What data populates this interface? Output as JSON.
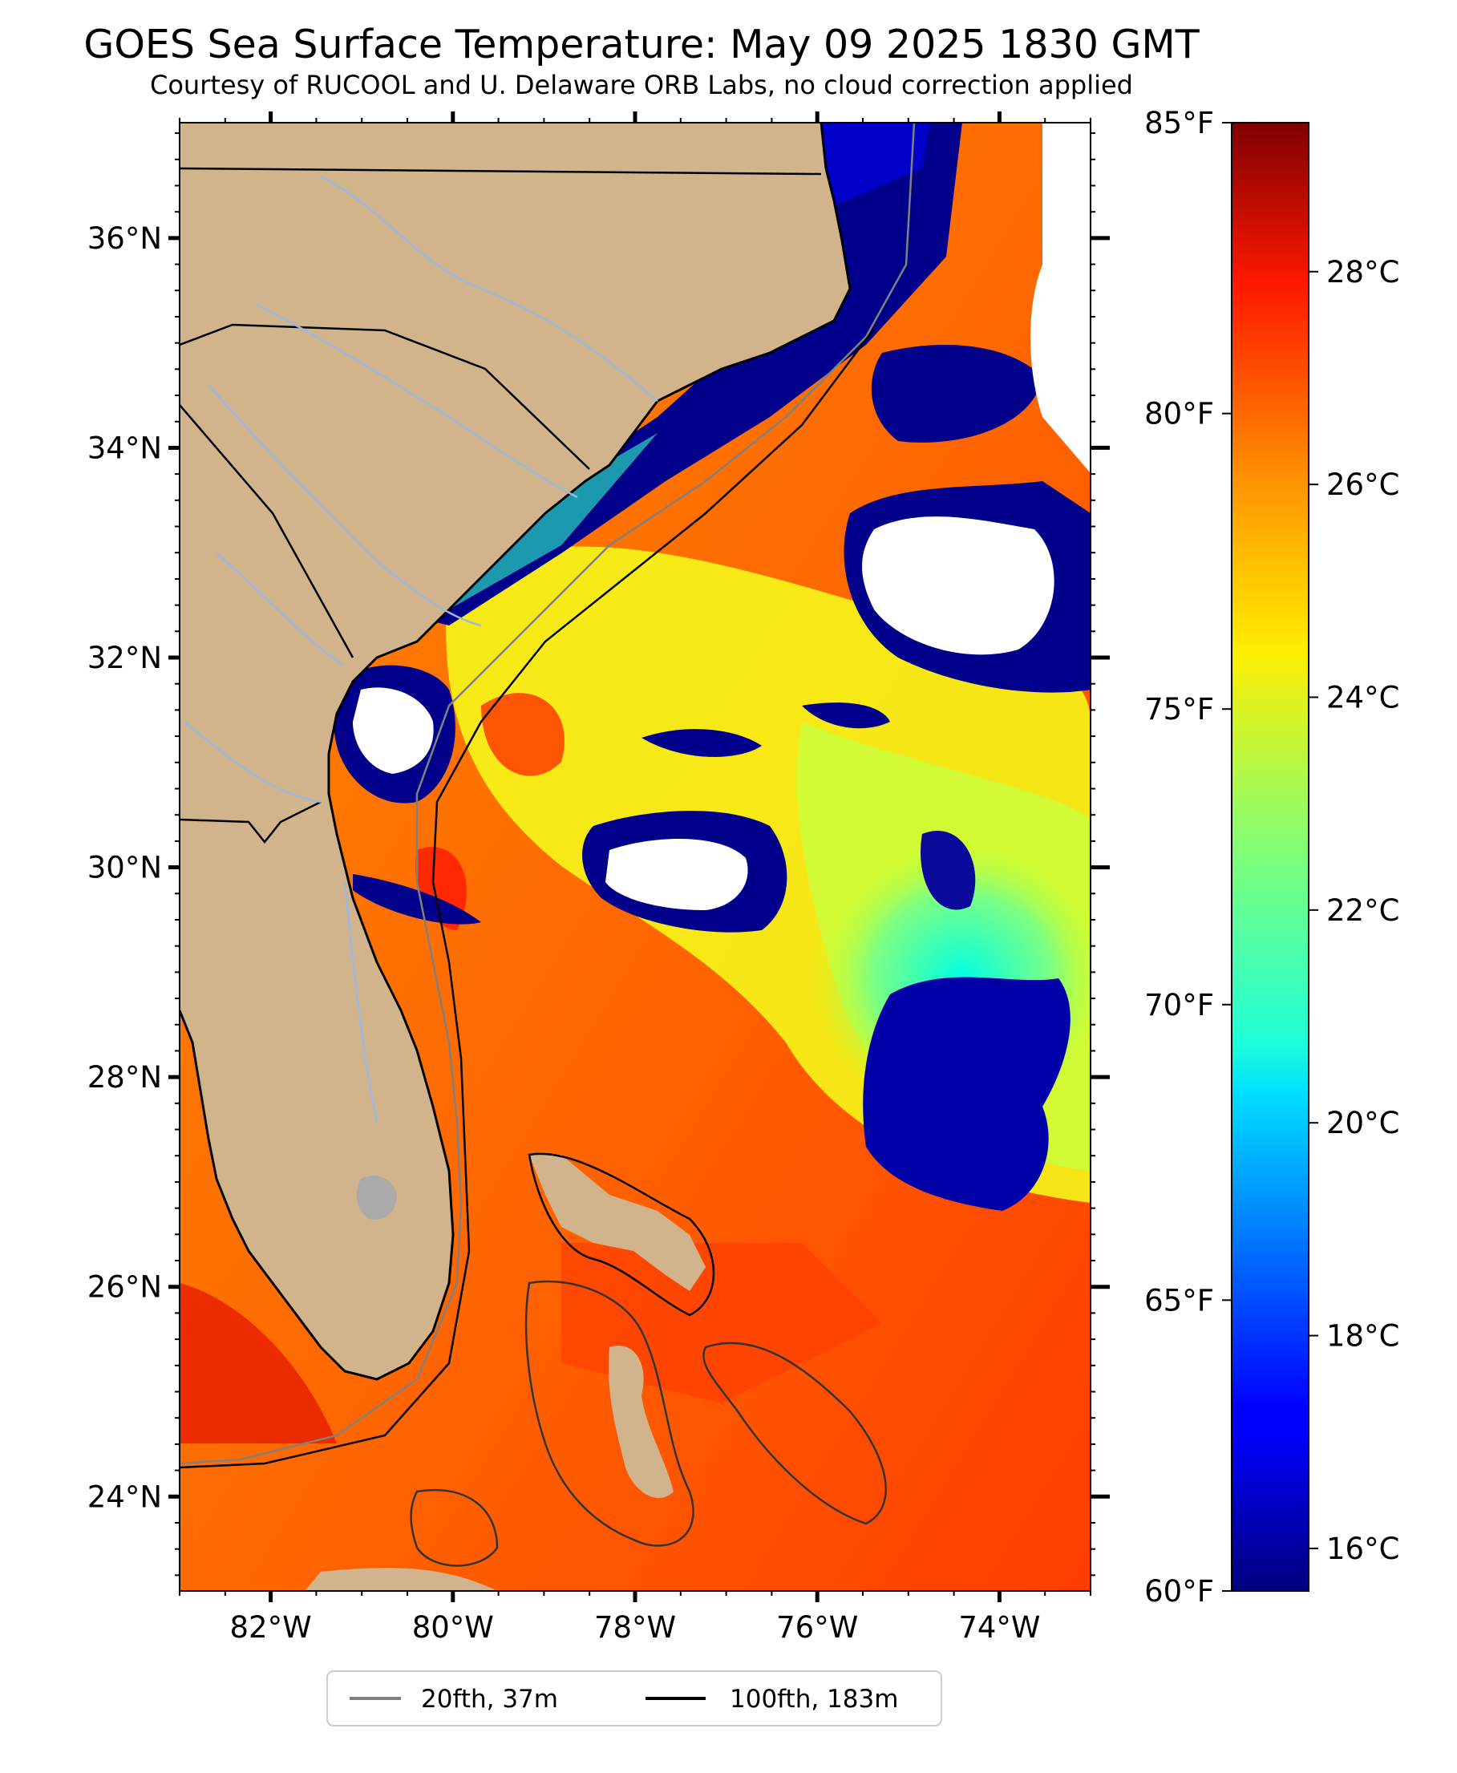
{
  "title": "GOES Sea Surface Temperature: May 09 2025 1830 GMT",
  "subtitle": "Courtesy of RUCOOL and U. Delaware ORB Labs, no cloud correction applied",
  "map": {
    "lon_range": [
      -83,
      -73
    ],
    "lat_range": [
      23.1,
      37.1
    ],
    "lat_ticks": [
      {
        "value": 24,
        "label": "24°N"
      },
      {
        "value": 26,
        "label": "26°N"
      },
      {
        "value": 28,
        "label": "28°N"
      },
      {
        "value": 30,
        "label": "30°N"
      },
      {
        "value": 32,
        "label": "32°N"
      },
      {
        "value": 34,
        "label": "34°N"
      },
      {
        "value": 36,
        "label": "36°N"
      }
    ],
    "lon_ticks": [
      {
        "value": -82,
        "label": "82°W"
      },
      {
        "value": -80,
        "label": "80°W"
      },
      {
        "value": -78,
        "label": "78°W"
      },
      {
        "value": -76,
        "label": "76°W"
      },
      {
        "value": -74,
        "label": "74°W"
      }
    ],
    "colors": {
      "land": "#d2b48c",
      "border": "#000000",
      "river": "#9cb8de",
      "contour_20fth": "#808080",
      "contour_100fth": "#000000",
      "cloud_mask": "#ffffff"
    }
  },
  "colorbar": {
    "colormap": "jet",
    "celsius_range": [
      15.6,
      29.4
    ],
    "celsius_ticks": [
      {
        "value": 16,
        "label": "16°C"
      },
      {
        "value": 18,
        "label": "18°C"
      },
      {
        "value": 20,
        "label": "20°C"
      },
      {
        "value": 22,
        "label": "22°C"
      },
      {
        "value": 24,
        "label": "24°C"
      },
      {
        "value": 26,
        "label": "26°C"
      },
      {
        "value": 28,
        "label": "28°C"
      }
    ],
    "fahrenheit_ticks": [
      {
        "value": 60,
        "label": "60°F"
      },
      {
        "value": 65,
        "label": "65°F"
      },
      {
        "value": 70,
        "label": "70°F"
      },
      {
        "value": 75,
        "label": "75°F"
      },
      {
        "value": 80,
        "label": "80°F"
      },
      {
        "value": 85,
        "label": "85°F"
      }
    ]
  },
  "legend": {
    "placement": "bottom-center",
    "items": [
      {
        "label": "20fth, 37m",
        "color": "#808080"
      },
      {
        "label": "100fth, 183m",
        "color": "#000000"
      }
    ]
  }
}
